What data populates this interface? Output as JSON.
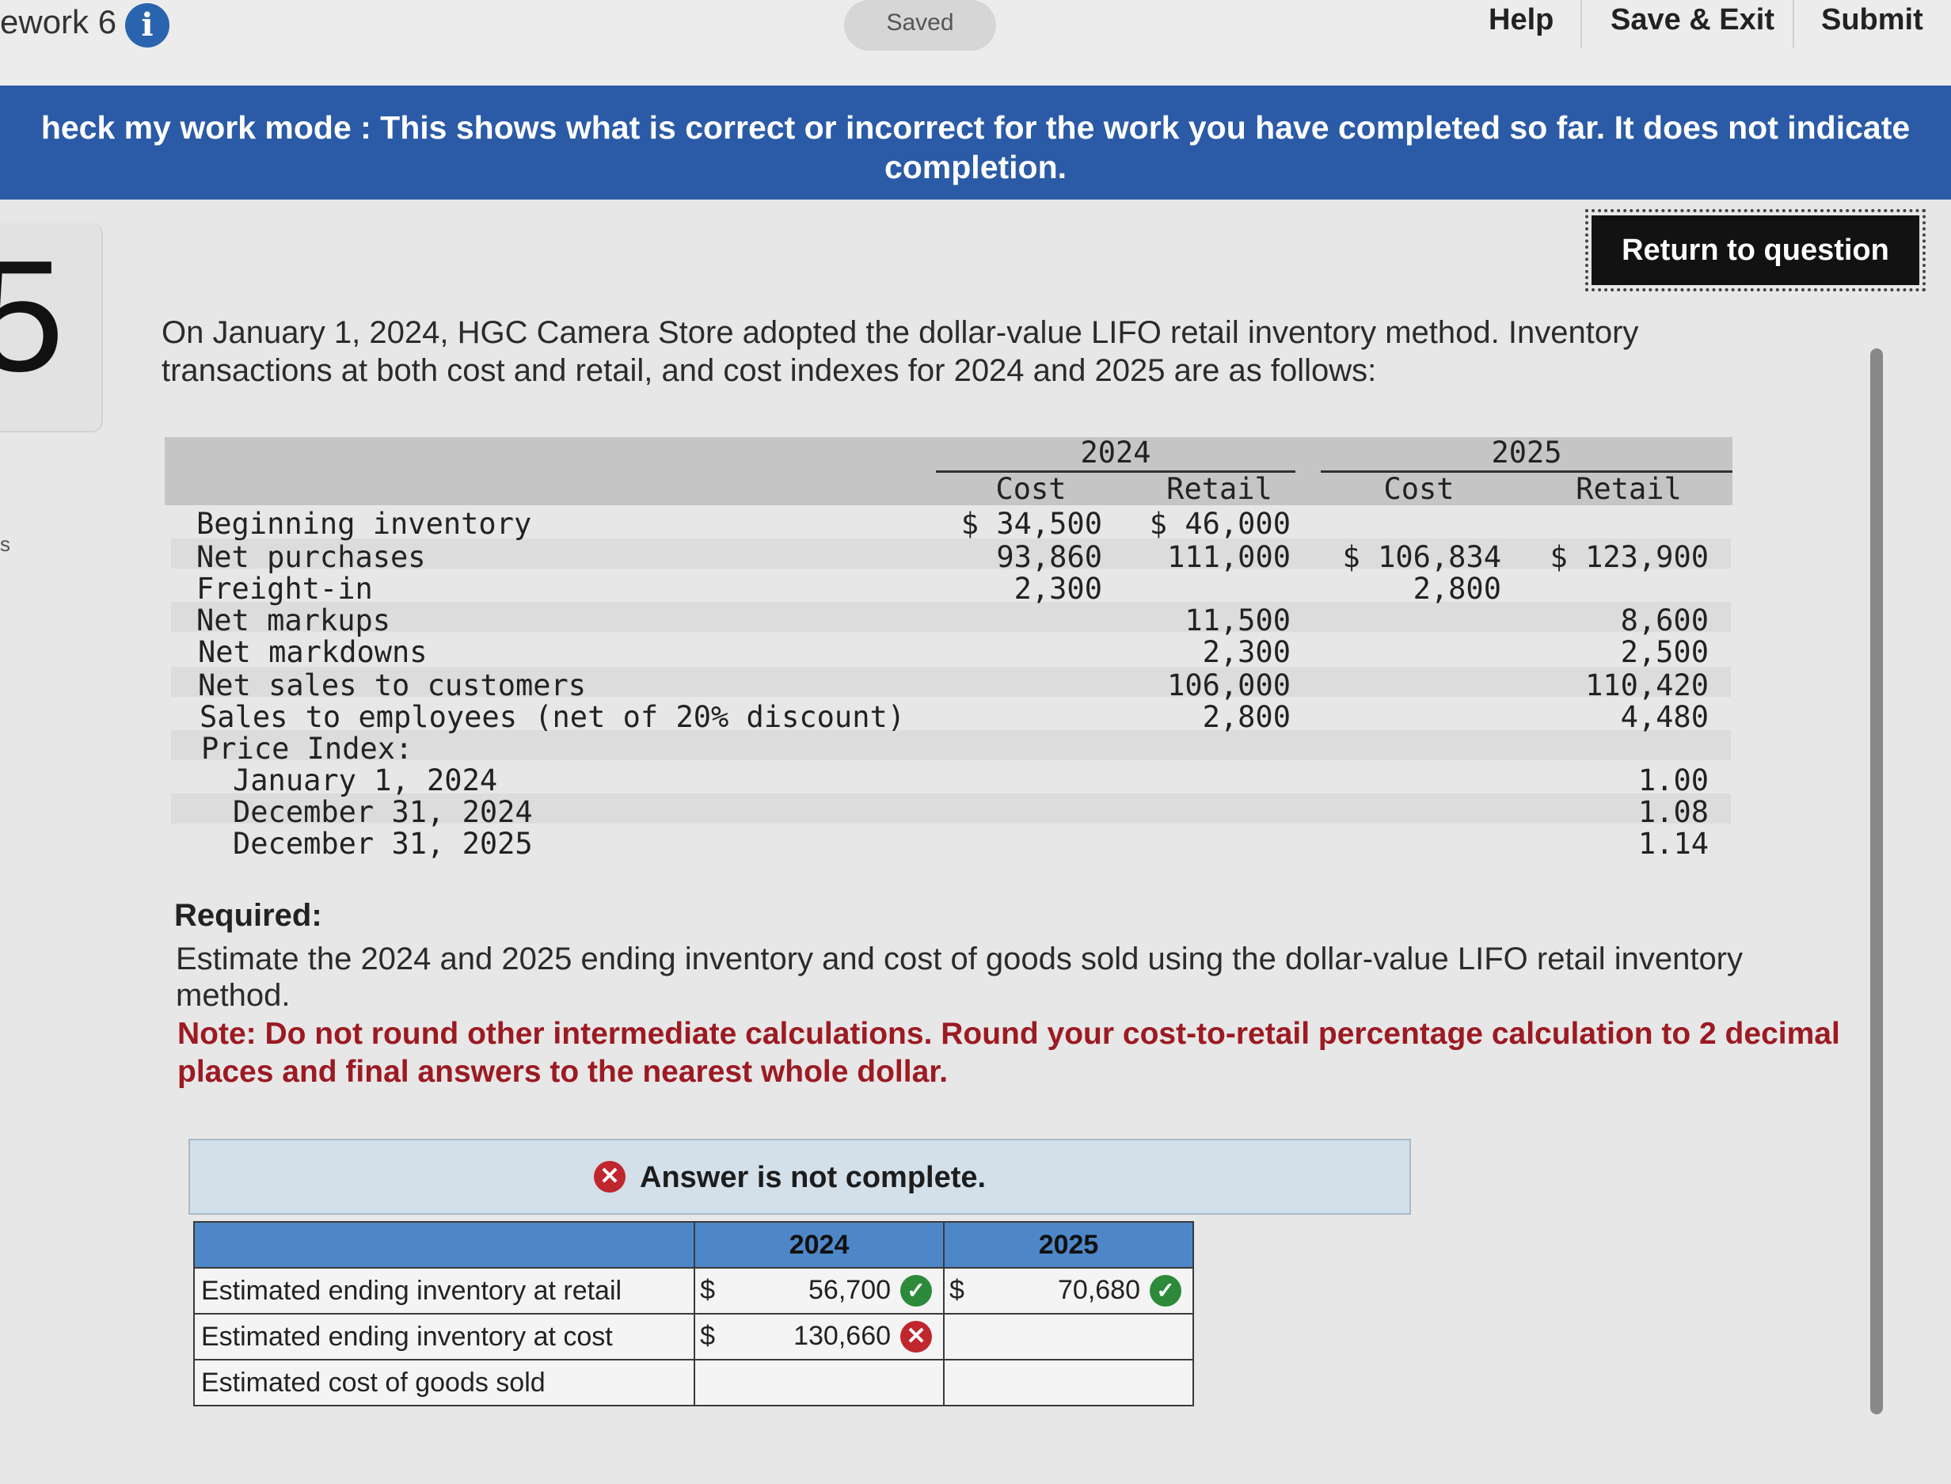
{
  "header": {
    "title": "ework 6",
    "saved": "Saved",
    "help": "Help",
    "save_exit": "Save & Exit",
    "submit": "Submit"
  },
  "banner": {
    "text": "heck my work mode : This shows what is correct or incorrect for the work you have completed so far. It does not indicate completion."
  },
  "question": {
    "number": "5",
    "return_label": "Return to question",
    "intro": "On January 1, 2024, HGC Camera Store adopted the dollar-value LIFO retail inventory method. Inventory transactions at both cost and retail, and cost indexes for 2024 and 2025 are as follows:",
    "side_mark": "s"
  },
  "data_table": {
    "years": [
      "2024",
      "2025"
    ],
    "col_headers": [
      "Cost",
      "Retail",
      "Cost",
      "Retail"
    ],
    "rows": [
      {
        "label": "Beginning inventory",
        "c24": "$ 34,500",
        "r24": "$ 46,000",
        "c25": "",
        "r25": ""
      },
      {
        "label": "Net purchases",
        "c24": "93,860",
        "r24": "111,000",
        "c25": "$ 106,834",
        "r25": "$ 123,900"
      },
      {
        "label": "Freight-in",
        "c24": "2,300",
        "r24": "",
        "c25": "2,800",
        "r25": ""
      },
      {
        "label": "Net markups",
        "c24": "",
        "r24": "11,500",
        "c25": "",
        "r25": "8,600"
      },
      {
        "label": "Net markdowns",
        "c24": "",
        "r24": "2,300",
        "c25": "",
        "r25": "2,500"
      },
      {
        "label": "Net sales to customers",
        "c24": "",
        "r24": "106,000",
        "c25": "",
        "r25": "110,420"
      },
      {
        "label": "Sales to employees (net of 20% discount)",
        "c24": "",
        "r24": "2,800",
        "c25": "",
        "r25": "4,480"
      },
      {
        "label": "Price Index:",
        "c24": "",
        "r24": "",
        "c25": "",
        "r25": ""
      },
      {
        "label": "January 1, 2024",
        "c24": "",
        "r24": "",
        "c25": "",
        "r25": "1.00"
      },
      {
        "label": "December 31, 2024",
        "c24": "",
        "r24": "",
        "c25": "",
        "r25": "1.08"
      },
      {
        "label": "December 31, 2025",
        "c24": "",
        "r24": "",
        "c25": "",
        "r25": "1.14"
      }
    ]
  },
  "required": {
    "heading": "Required:",
    "text": "Estimate the 2024 and 2025 ending inventory and cost of goods sold using the dollar-value LIFO retail inventory method.",
    "note": "Note: Do not round other intermediate calculations. Round your cost-to-retail percentage calculation to 2 decimal places and final answers to the nearest whole dollar."
  },
  "answer": {
    "status": "Answer is not complete.",
    "headers": [
      "2024",
      "2025"
    ],
    "rows": [
      {
        "label": "Estimated ending inventory at retail",
        "d24": "$",
        "v24": "56,700",
        "s24": "correct",
        "d25": "$",
        "v25": "70,680",
        "s25": "correct"
      },
      {
        "label": "Estimated ending inventory at cost",
        "d24": "$",
        "v24": "130,660",
        "s24": "incorrect",
        "d25": "",
        "v25": "",
        "s25": ""
      },
      {
        "label": "Estimated cost of goods sold",
        "d24": "",
        "v24": "",
        "s24": "",
        "d25": "",
        "v25": "",
        "s25": ""
      }
    ],
    "colors": {
      "correct": "#2c8a3a",
      "incorrect": "#c0262d",
      "header": "#4e87c8"
    }
  }
}
